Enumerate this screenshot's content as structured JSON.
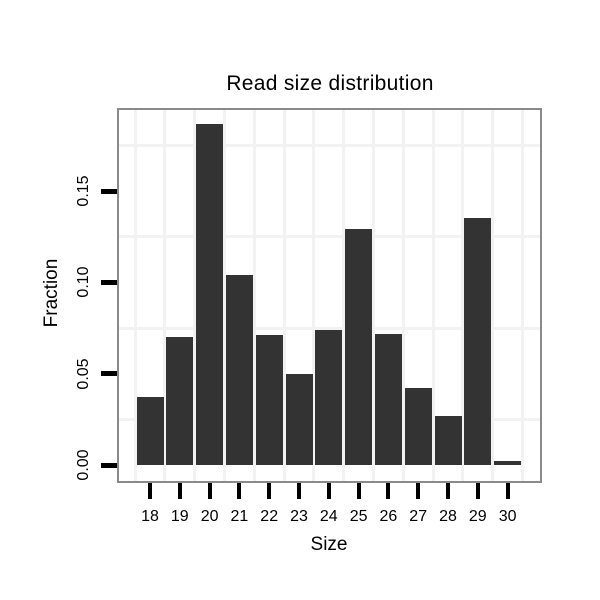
{
  "chart_data": {
    "type": "bar",
    "title": "Read size distribution",
    "xlabel": "Size",
    "ylabel": "Fraction",
    "categories": [
      "18",
      "19",
      "20",
      "21",
      "22",
      "23",
      "24",
      "25",
      "26",
      "27",
      "28",
      "29",
      "30"
    ],
    "values": [
      0.037,
      0.07,
      0.187,
      0.104,
      0.071,
      0.05,
      0.074,
      0.129,
      0.072,
      0.042,
      0.027,
      0.135,
      0.002
    ],
    "y_tick_labels": [
      "0.00",
      "0.05",
      "0.10",
      "0.15"
    ],
    "y_tick_values": [
      0.0,
      0.05,
      0.1,
      0.15
    ],
    "ylim": [
      0,
      0.195
    ],
    "grid": "faint minor gridlines only, at 0.025-step midpoints and at half-integer x positions",
    "legend": "none",
    "colors": {
      "bar": "#333333",
      "panel_border": "#8a8a8a",
      "gridline": "#f2f2f2",
      "tick": "#000000",
      "background": "#ffffff",
      "text": "#000000"
    }
  }
}
